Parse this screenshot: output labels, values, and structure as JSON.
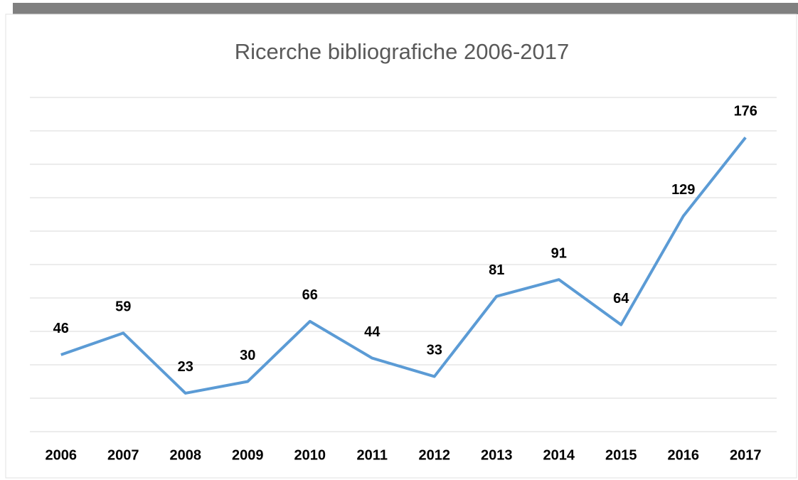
{
  "chart_data": {
    "type": "line",
    "title": "Ricerche bibliografiche 2006-2017",
    "categories": [
      "2006",
      "2007",
      "2008",
      "2009",
      "2010",
      "2011",
      "2012",
      "2013",
      "2014",
      "2015",
      "2016",
      "2017"
    ],
    "values": [
      46,
      59,
      23,
      30,
      66,
      44,
      33,
      81,
      91,
      64,
      129,
      176
    ],
    "color": "#5b9bd5",
    "ylim": [
      0,
      200
    ],
    "yticks": [
      0,
      20,
      40,
      60,
      80,
      100,
      120,
      140,
      160,
      180,
      200
    ],
    "grid": true
  }
}
